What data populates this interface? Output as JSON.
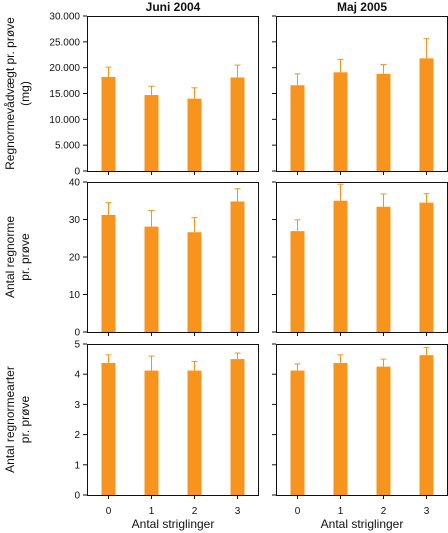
{
  "chart_data": {
    "type": "bar",
    "column_titles": [
      "Juni 2004",
      "Maj 2005"
    ],
    "xlabel": "Antal striglinger",
    "categories": [
      "0",
      "1",
      "2",
      "3"
    ],
    "bar_color": "#F7941D",
    "error_bar_color": "#F7941D",
    "rows": [
      {
        "ylabel_lines": [
          "Regnormevådvægt pr. prøve",
          "(mg)"
        ],
        "ylim": [
          0,
          30000
        ],
        "yticks": [
          0,
          5000,
          10000,
          15000,
          20000,
          25000,
          30000
        ],
        "ytick_labels": [
          "0",
          "5.000",
          "10.000",
          "15.000",
          "20.000",
          "25.000",
          "30.000"
        ],
        "panels": [
          {
            "column": "Juni 2004",
            "values": [
              18200,
              14700,
              14000,
              18100
            ],
            "errors": [
              1900,
              1700,
              2100,
              2400
            ]
          },
          {
            "column": "Maj 2005",
            "values": [
              16600,
              19100,
              18800,
              21800
            ],
            "errors": [
              2200,
              2500,
              1800,
              3800
            ]
          }
        ]
      },
      {
        "ylabel_lines": [
          "Antal regnorme",
          "pr. prøve"
        ],
        "ylim": [
          0,
          40
        ],
        "yticks": [
          0,
          10,
          20,
          30,
          40
        ],
        "ytick_labels": [
          "0",
          "10",
          "20",
          "30",
          "40"
        ],
        "panels": [
          {
            "column": "Juni 2004",
            "values": [
              31.2,
              28.1,
              26.6,
              34.8
            ],
            "errors": [
              3.3,
              4.3,
              3.9,
              3.4
            ]
          },
          {
            "column": "Maj 2005",
            "values": [
              26.9,
              35.0,
              33.4,
              34.5
            ],
            "errors": [
              3.0,
              4.4,
              3.4,
              2.4
            ]
          }
        ]
      },
      {
        "ylabel_lines": [
          "Antal regnormearter",
          "pr. prøve"
        ],
        "ylim": [
          0,
          5
        ],
        "yticks": [
          0,
          1,
          2,
          3,
          4,
          5
        ],
        "ytick_labels": [
          "0",
          "1",
          "2",
          "3",
          "4",
          "5"
        ],
        "panels": [
          {
            "column": "Juni 2004",
            "values": [
              4.37,
              4.12,
              4.12,
              4.5
            ],
            "errors": [
              0.27,
              0.48,
              0.3,
              0.2
            ]
          },
          {
            "column": "Maj 2005",
            "values": [
              4.12,
              4.37,
              4.25,
              4.63
            ],
            "errors": [
              0.22,
              0.27,
              0.25,
              0.25
            ]
          }
        ]
      }
    ]
  }
}
